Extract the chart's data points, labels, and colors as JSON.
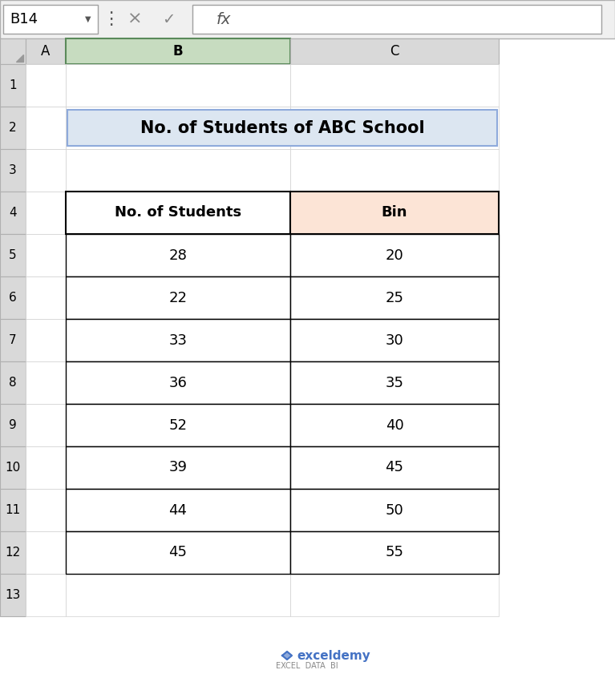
{
  "title": "No. of Students of ABC School",
  "col1_header": "No. of Students",
  "col2_header": "Bin",
  "students": [
    28,
    22,
    33,
    36,
    52,
    39,
    44,
    45
  ],
  "bins": [
    20,
    25,
    30,
    35,
    40,
    45,
    50,
    55
  ],
  "cell_ref": "B14",
  "col_labels": [
    "A",
    "B",
    "C"
  ],
  "row_labels": [
    "1",
    "2",
    "3",
    "4",
    "5",
    "6",
    "7",
    "8",
    "9",
    "10",
    "11",
    "12",
    "13"
  ],
  "bg_color": "#ffffff",
  "header_bg_col1": "#ffffff",
  "header_bg_col2": "#fce4d6",
  "title_bg": "#dce6f1",
  "title_border": "#8eaadb",
  "excel_toolbar_bg": "#f0f0f0",
  "excel_col_header_bg": "#d9d9d9",
  "excel_row_header_bg": "#d9d9d9",
  "watermark_line1": "exceldemy",
  "watermark_line2": "EXCEL  DATA  BI",
  "col_b_selected_color": "#c7dcc0"
}
